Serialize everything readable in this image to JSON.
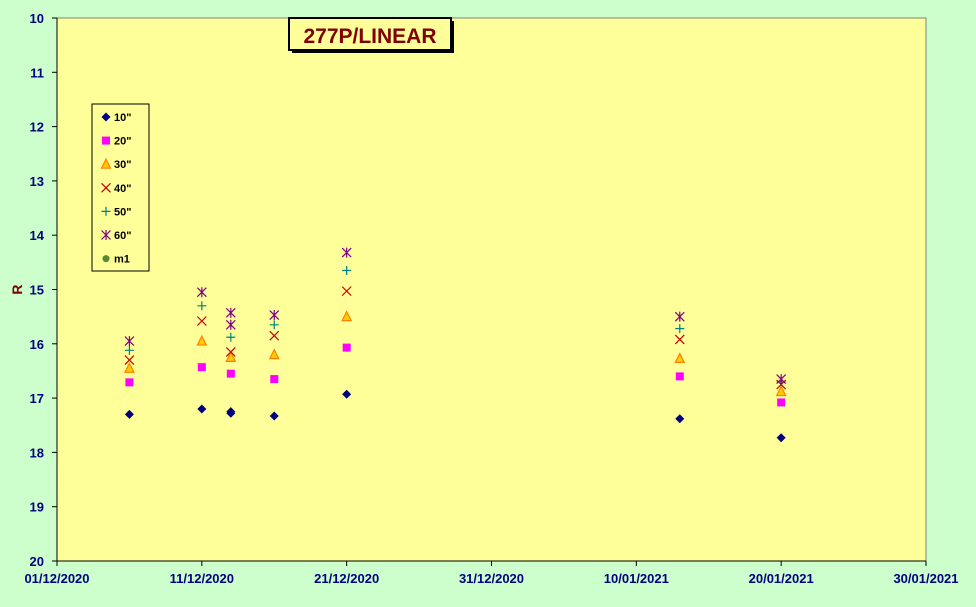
{
  "chart_data": {
    "type": "scatter",
    "title": "277P/LINEAR",
    "xlabel": "",
    "ylabel": "R",
    "ylim": [
      10,
      20
    ],
    "y_inverted": true,
    "y_ticks": [
      "10",
      "11",
      "12",
      "13",
      "14",
      "15",
      "16",
      "17",
      "18",
      "19",
      "20"
    ],
    "x_range": [
      "2020-12-01",
      "2021-01-30"
    ],
    "x_ticks": [
      "01/12/2020",
      "11/12/2020",
      "21/12/2020",
      "31/12/2020",
      "10/01/2021",
      "20/01/2021",
      "30/01/2021"
    ],
    "legend_position": "left",
    "plot_background": "#ffff99",
    "page_background": "#ccffcc",
    "axis_color": "#000080",
    "title_color": "#800000",
    "series": [
      {
        "name": "10\"",
        "marker": "diamond",
        "color": "#000080",
        "points": [
          [
            "2020-12-06",
            17.3
          ],
          [
            "2020-12-11",
            17.2
          ],
          [
            "2020-12-13",
            17.25
          ],
          [
            "2020-12-13",
            17.28
          ],
          [
            "2020-12-16",
            17.33
          ],
          [
            "2020-12-21",
            16.93
          ],
          [
            "2021-01-13",
            17.38
          ],
          [
            "2021-01-20",
            17.73
          ]
        ]
      },
      {
        "name": "20\"",
        "marker": "square",
        "color": "#ff00ff",
        "points": [
          [
            "2020-12-06",
            16.71
          ],
          [
            "2020-12-11",
            16.43
          ],
          [
            "2020-12-13",
            16.55
          ],
          [
            "2020-12-16",
            16.65
          ],
          [
            "2020-12-21",
            16.07
          ],
          [
            "2021-01-13",
            16.6
          ],
          [
            "2021-01-20",
            17.08
          ]
        ]
      },
      {
        "name": "30\"",
        "marker": "triangle",
        "color": "#ff8000",
        "points": [
          [
            "2020-12-06",
            16.45
          ],
          [
            "2020-12-11",
            15.95
          ],
          [
            "2020-12-13",
            16.25
          ],
          [
            "2020-12-16",
            16.2
          ],
          [
            "2020-12-21",
            15.5
          ],
          [
            "2021-01-13",
            16.27
          ],
          [
            "2021-01-20",
            16.88
          ]
        ]
      },
      {
        "name": "40\"",
        "marker": "x",
        "color": "#cc0000",
        "points": [
          [
            "2020-12-06",
            16.3
          ],
          [
            "2020-12-11",
            15.58
          ],
          [
            "2020-12-13",
            16.15
          ],
          [
            "2020-12-16",
            15.85
          ],
          [
            "2020-12-21",
            15.03
          ],
          [
            "2021-01-13",
            15.92
          ],
          [
            "2021-01-20",
            16.75
          ]
        ]
      },
      {
        "name": "50\"",
        "marker": "plus",
        "color": "#008080",
        "points": [
          [
            "2020-12-06",
            16.12
          ],
          [
            "2020-12-11",
            15.3
          ],
          [
            "2020-12-13",
            15.88
          ],
          [
            "2020-12-16",
            15.65
          ],
          [
            "2020-12-21",
            14.65
          ],
          [
            "2021-01-13",
            15.72
          ],
          [
            "2021-01-20",
            16.7
          ]
        ]
      },
      {
        "name": "60\"",
        "marker": "star",
        "color": "#800080",
        "points": [
          [
            "2020-12-06",
            15.95
          ],
          [
            "2020-12-11",
            15.05
          ],
          [
            "2020-12-13",
            15.65
          ],
          [
            "2020-12-13",
            15.43
          ],
          [
            "2020-12-16",
            15.47
          ],
          [
            "2020-12-21",
            14.32
          ],
          [
            "2021-01-13",
            15.5
          ],
          [
            "2021-01-20",
            16.65
          ]
        ]
      },
      {
        "name": "m1",
        "marker": "circle",
        "color": "#558b2f",
        "points": []
      }
    ]
  }
}
